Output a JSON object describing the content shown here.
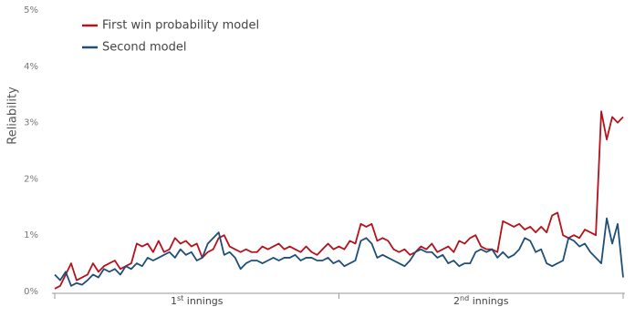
{
  "chart_data": {
    "type": "line",
    "y_label": "Reliability",
    "ylim": [
      0,
      5
    ],
    "yticks": [
      {
        "value": 0,
        "label": "0%"
      },
      {
        "value": 1,
        "label": "1%"
      },
      {
        "value": 2,
        "label": "2%"
      },
      {
        "value": 3,
        "label": "3%"
      },
      {
        "value": 4,
        "label": "4%"
      },
      {
        "value": 5,
        "label": "5%"
      }
    ],
    "sections": [
      {
        "number": "1",
        "suffix": "st",
        "text": " innings"
      },
      {
        "number": "2",
        "suffix": "nd",
        "text": " innings"
      }
    ],
    "legend": "upper left",
    "series": [
      {
        "name": "First win probability model",
        "color": "#b5121b",
        "values": [
          0.05,
          0.1,
          0.3,
          0.5,
          0.2,
          0.25,
          0.3,
          0.5,
          0.35,
          0.45,
          0.5,
          0.55,
          0.4,
          0.45,
          0.5,
          0.85,
          0.8,
          0.85,
          0.7,
          0.9,
          0.7,
          0.75,
          0.95,
          0.85,
          0.9,
          0.8,
          0.85,
          0.6,
          0.7,
          0.75,
          0.95,
          1.0,
          0.8,
          0.75,
          0.7,
          0.75,
          0.7,
          0.7,
          0.8,
          0.75,
          0.8,
          0.85,
          0.75,
          0.8,
          0.75,
          0.7,
          0.8,
          0.7,
          0.65,
          0.75,
          0.85,
          0.75,
          0.8,
          0.75,
          0.9,
          0.85,
          1.2,
          1.15,
          1.2,
          0.9,
          0.95,
          0.9,
          0.75,
          0.7,
          0.75,
          0.65,
          0.7,
          0.8,
          0.75,
          0.85,
          0.7,
          0.75,
          0.8,
          0.7,
          0.9,
          0.85,
          0.95,
          1.0,
          0.8,
          0.75,
          0.75,
          0.7,
          1.25,
          1.2,
          1.15,
          1.2,
          1.1,
          1.15,
          1.05,
          1.15,
          1.05,
          1.35,
          1.4,
          1.0,
          0.95,
          1.0,
          0.95,
          1.1,
          1.05,
          1.0,
          3.2,
          2.7,
          3.1,
          3.0,
          3.1
        ]
      },
      {
        "name": "Second model",
        "color": "#1f4e79",
        "values": [
          0.3,
          0.2,
          0.35,
          0.1,
          0.15,
          0.12,
          0.2,
          0.3,
          0.25,
          0.4,
          0.35,
          0.4,
          0.3,
          0.45,
          0.4,
          0.5,
          0.45,
          0.6,
          0.55,
          0.6,
          0.65,
          0.7,
          0.6,
          0.75,
          0.65,
          0.7,
          0.55,
          0.6,
          0.85,
          0.95,
          1.05,
          0.65,
          0.7,
          0.6,
          0.4,
          0.5,
          0.55,
          0.55,
          0.5,
          0.55,
          0.6,
          0.55,
          0.6,
          0.6,
          0.65,
          0.55,
          0.6,
          0.6,
          0.55,
          0.55,
          0.6,
          0.5,
          0.55,
          0.45,
          0.5,
          0.55,
          0.9,
          0.95,
          0.85,
          0.6,
          0.65,
          0.6,
          0.55,
          0.5,
          0.45,
          0.55,
          0.7,
          0.75,
          0.7,
          0.7,
          0.6,
          0.65,
          0.5,
          0.55,
          0.45,
          0.5,
          0.5,
          0.7,
          0.75,
          0.7,
          0.75,
          0.6,
          0.7,
          0.6,
          0.65,
          0.75,
          0.95,
          0.9,
          0.7,
          0.75,
          0.5,
          0.45,
          0.5,
          0.55,
          0.95,
          0.9,
          0.8,
          0.85,
          0.7,
          0.6,
          0.5,
          1.3,
          0.85,
          1.2,
          0.25
        ]
      }
    ]
  }
}
